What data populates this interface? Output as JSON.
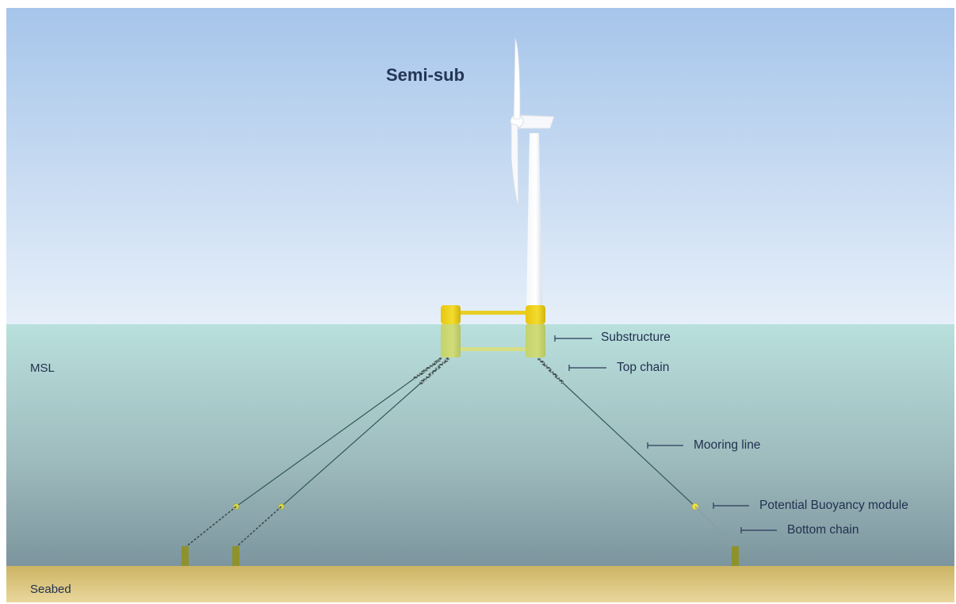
{
  "title": "Semi-sub",
  "levels": {
    "msl": "MSL",
    "seabed": "Seabed"
  },
  "callouts": {
    "substructure": "Substructure",
    "top_chain": "Top chain",
    "mooring_line": "Mooring line",
    "buoyancy_module": "Potential Buoyancy module",
    "bottom_chain": "Bottom chain"
  },
  "colors": {
    "sky_top": "#a6c5ea",
    "sky_bottom": "#e6eff9",
    "water_top": "#b8dfdc",
    "water_bottom": "#7f9aa2",
    "seabed_top": "#cdb766",
    "seabed_bottom": "#e9d69a",
    "float_yellow": "#e0c81a",
    "mooring_line": "#2f5a55",
    "buoy": "#e8df3c",
    "anchor": "#8a8f2c",
    "label": "#22314f"
  }
}
